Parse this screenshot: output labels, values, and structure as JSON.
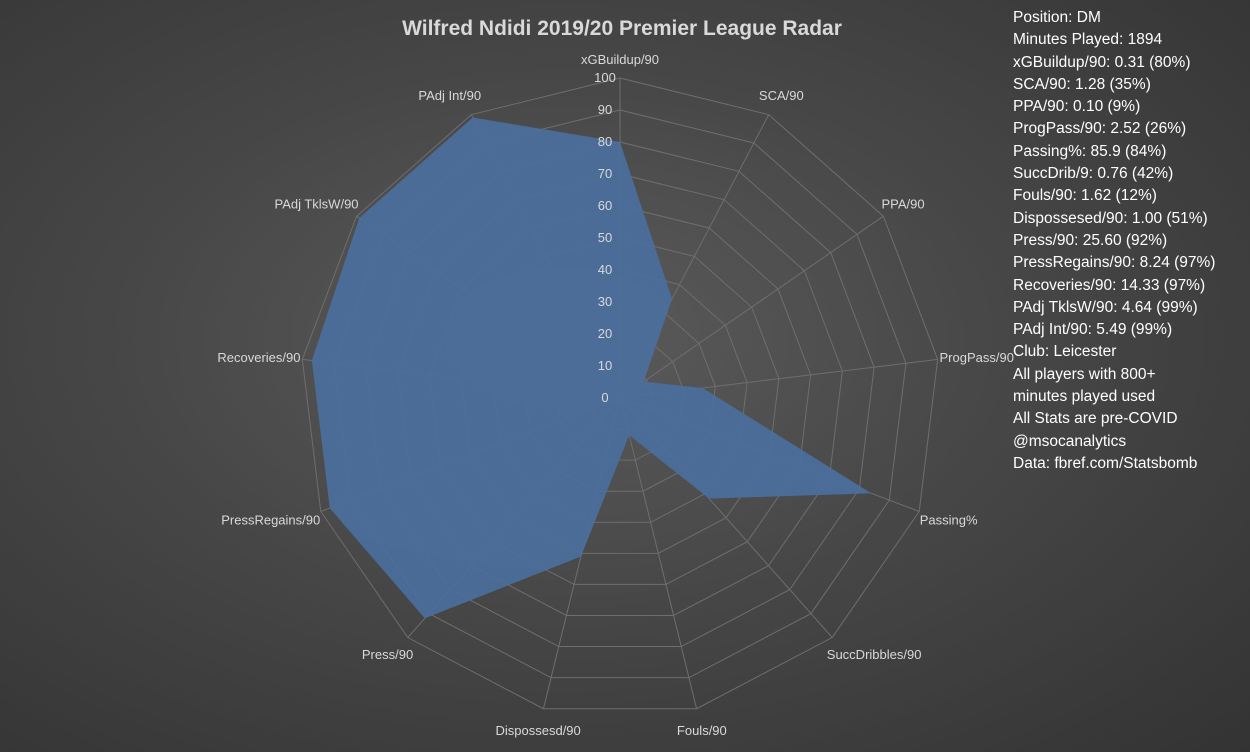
{
  "chart_data": {
    "type": "radar",
    "title": "Wilfred Ndidi 2019/20 Premier League Radar",
    "axes": [
      "xGBuildup/90",
      "SCA/90",
      "PPA/90",
      "ProgPass/90",
      "Passing%",
      "SuccDribbles/90",
      "Fouls/90",
      "Dispossesd/90",
      "Press/90",
      "PressRegains/90",
      "Recoveries/90",
      "PAdj TklsW/90",
      "PAdj Int/90"
    ],
    "values": [
      80,
      35,
      9,
      26,
      84,
      42,
      12,
      51,
      92,
      97,
      97,
      99,
      99
    ],
    "rlim": [
      0,
      100
    ],
    "r_ticks": [
      "0",
      "10",
      "20",
      "30",
      "40",
      "50",
      "60",
      "70",
      "80",
      "90",
      "100"
    ],
    "grid": true,
    "series_color": "#4a6f9c"
  },
  "side_panel": {
    "position": "Position: DM",
    "minutes": "Minutes Played: 1894",
    "stats": [
      "xGBuildup/90: 0.31 (80%)",
      "SCA/90: 1.28 (35%)",
      "PPA/90: 0.10 (9%)",
      "ProgPass/90: 2.52 (26%)",
      "Passing%: 85.9 (84%)",
      "SuccDrib/9: 0.76 (42%)",
      "Fouls/90: 1.62 (12%)",
      "Dispossesed/90: 1.00 (51%)",
      "Press/90: 25.60 (92%)",
      "PressRegains/90: 8.24 (97%)",
      "Recoveries/90: 14.33 (97%)",
      "PAdj TklsW/90: 4.64 (99%)",
      "PAdj Int/90: 5.49 (99%)"
    ],
    "club": "Club: Leicester",
    "note1": "All players with 800+ minutes played used",
    "note2": "All Stats are pre-COVID",
    "handle": "@msocanalytics",
    "source": "Data: fbref.com/Statsbomb"
  }
}
